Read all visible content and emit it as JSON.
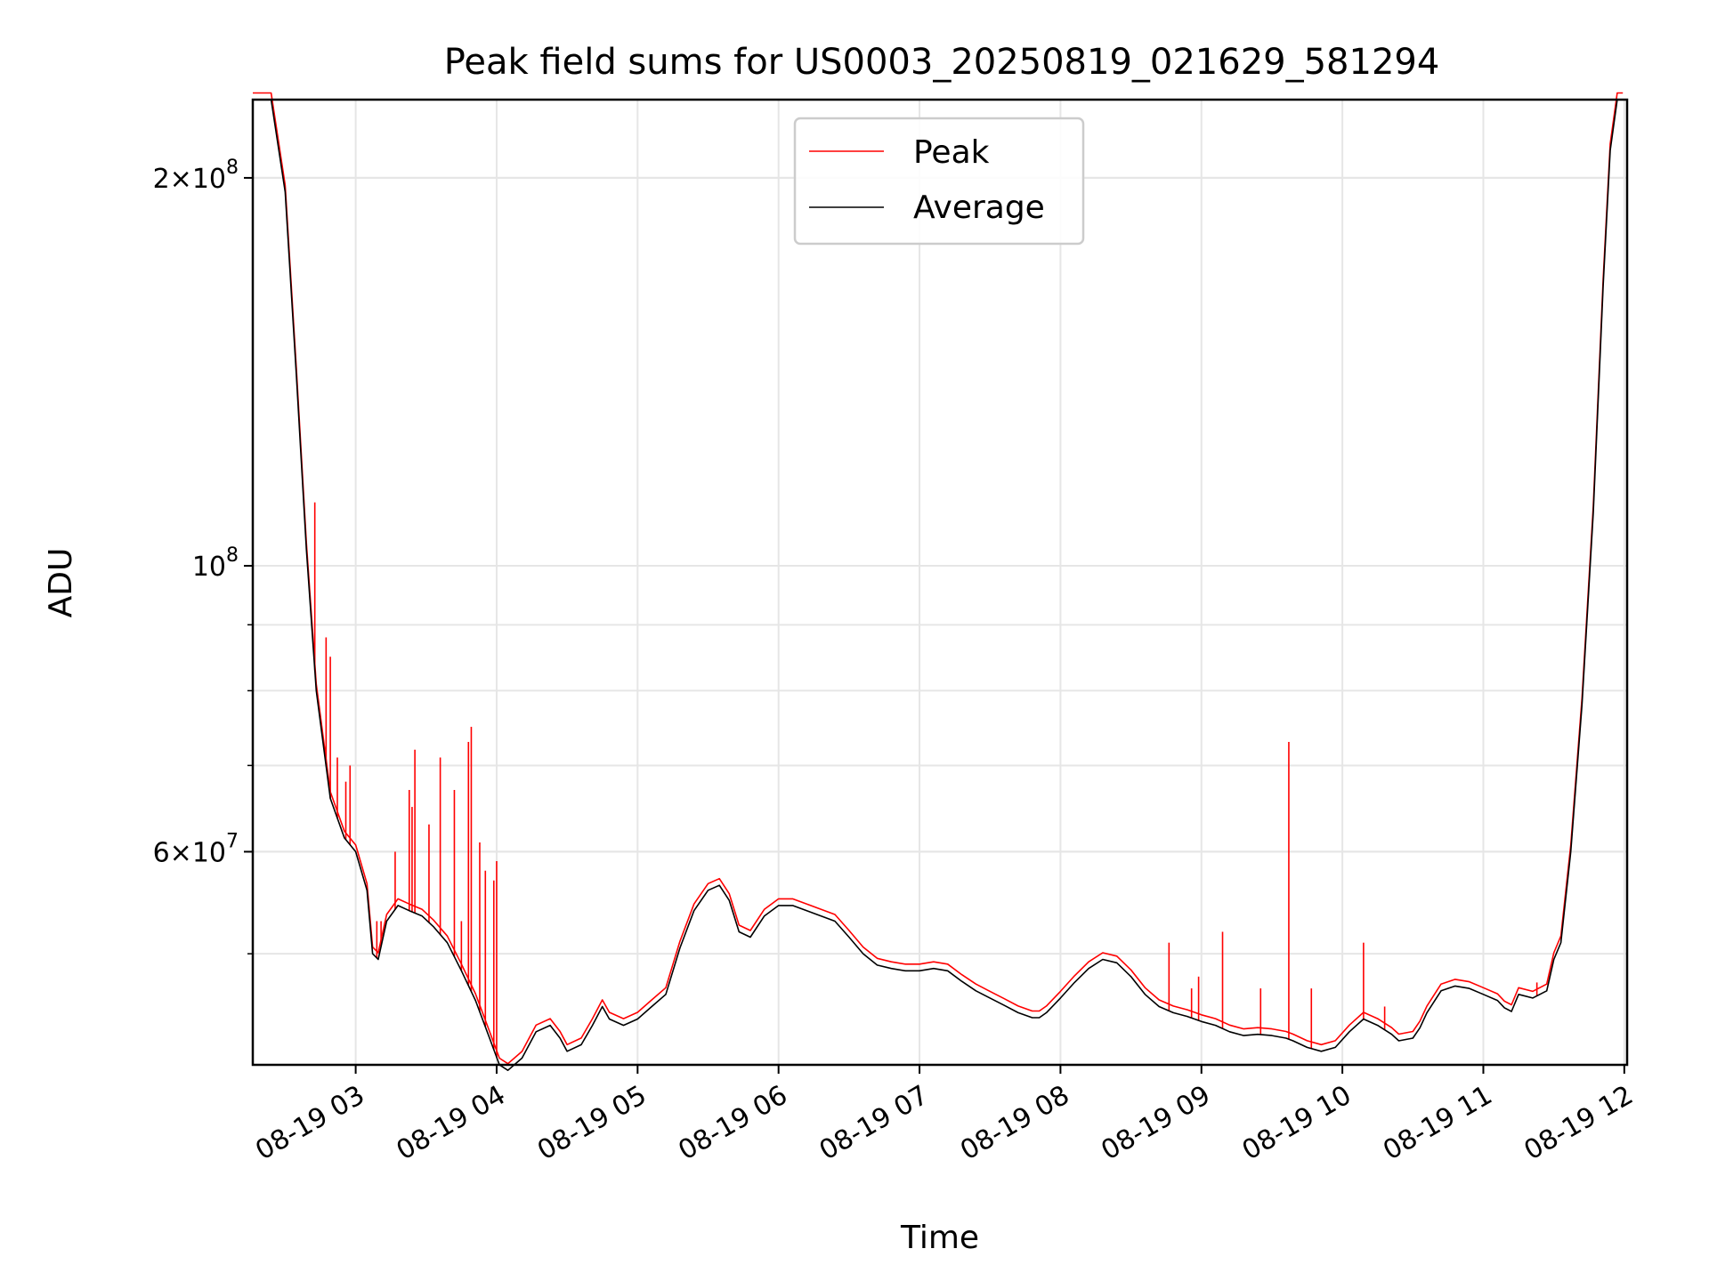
{
  "chart_data": {
    "type": "line",
    "title": "Peak field sums for US0003_20250819_021629_581294",
    "xlabel": "Time",
    "ylabel": "ADU",
    "yscale": "log",
    "xlim": [
      "08-19 02:16",
      "08-19 12:01"
    ],
    "ylim": [
      41000000,
      230000000
    ],
    "grid": true,
    "legend_position": "upper center",
    "x_ticks": [
      "08-19 03",
      "08-19 04",
      "08-19 05",
      "08-19 06",
      "08-19 07",
      "08-19 08",
      "08-19 09",
      "08-19 10",
      "08-19 11",
      "08-19 12"
    ],
    "y_major_ticks": [
      {
        "value": 200000000,
        "mantissa": "2",
        "exponent": "8"
      },
      {
        "value": 100000000,
        "mantissa": "",
        "exponent": "8"
      },
      {
        "value": 60000000,
        "mantissa": "6",
        "exponent": "7"
      }
    ],
    "y_minor_ticks": [
      200000000,
      90000000,
      80000000,
      70000000,
      60000000,
      50000000
    ],
    "x_unit": "hour of day 08-19",
    "series": [
      {
        "name": "Average",
        "color": "#000000",
        "x": [
          2.27,
          2.4,
          2.5,
          2.58,
          2.65,
          2.72,
          2.82,
          2.92,
          3.0,
          3.08,
          3.12,
          3.16,
          3.22,
          3.3,
          3.38,
          3.47,
          3.55,
          3.65,
          3.75,
          3.85,
          3.95,
          4.02,
          4.08,
          4.18,
          4.28,
          4.38,
          4.45,
          4.5,
          4.6,
          4.68,
          4.75,
          4.8,
          4.9,
          5.0,
          5.1,
          5.2,
          5.3,
          5.4,
          5.5,
          5.58,
          5.65,
          5.72,
          5.8,
          5.9,
          6.0,
          6.1,
          6.2,
          6.3,
          6.4,
          6.5,
          6.6,
          6.7,
          6.8,
          6.9,
          7.0,
          7.1,
          7.2,
          7.3,
          7.4,
          7.5,
          7.6,
          7.7,
          7.8,
          7.85,
          7.9,
          8.0,
          8.1,
          8.2,
          8.3,
          8.4,
          8.5,
          8.6,
          8.7,
          8.8,
          8.9,
          9.0,
          9.1,
          9.2,
          9.3,
          9.4,
          9.5,
          9.6,
          9.65,
          9.75,
          9.85,
          9.95,
          10.05,
          10.15,
          10.25,
          10.35,
          10.4,
          10.5,
          10.55,
          10.6,
          10.7,
          10.8,
          10.9,
          11.0,
          11.1,
          11.15,
          11.2,
          11.25,
          11.35,
          11.45,
          11.5,
          11.55,
          11.62,
          11.7,
          11.78,
          11.85,
          11.9,
          11.95,
          11.99
        ],
        "y": [
          230000000,
          230000000,
          195000000,
          140000000,
          103000000,
          80000000,
          66000000,
          61500000,
          60000000,
          56000000,
          50000000,
          49500000,
          53000000,
          54500000,
          54000000,
          53500000,
          52500000,
          51000000,
          48500000,
          46000000,
          43000000,
          41000000,
          40600000,
          41500000,
          43500000,
          44000000,
          43000000,
          42000000,
          42500000,
          44000000,
          45500000,
          44500000,
          44000000,
          44500000,
          45500000,
          46500000,
          50500000,
          54000000,
          56000000,
          56500000,
          55000000,
          52000000,
          51500000,
          53500000,
          54500000,
          54500000,
          54000000,
          53500000,
          53000000,
          51500000,
          50000000,
          49000000,
          48700000,
          48500000,
          48500000,
          48700000,
          48500000,
          47600000,
          46800000,
          46200000,
          45600000,
          45000000,
          44600000,
          44600000,
          45000000,
          46200000,
          47500000,
          48700000,
          49500000,
          49200000,
          48000000,
          46500000,
          45500000,
          45000000,
          44700000,
          44300000,
          44000000,
          43500000,
          43200000,
          43300000,
          43200000,
          43000000,
          42800000,
          42300000,
          42000000,
          42300000,
          43500000,
          44500000,
          44000000,
          43300000,
          42800000,
          43000000,
          43800000,
          45000000,
          46800000,
          47200000,
          47000000,
          46500000,
          46000000,
          45400000,
          45100000,
          46500000,
          46200000,
          46800000,
          49500000,
          51000000,
          60000000,
          78000000,
          110000000,
          165000000,
          210000000,
          230000000,
          230000000
        ]
      },
      {
        "name": "Peak",
        "color": "#ff0000",
        "spikes": [
          {
            "x": 2.71,
            "y": 112000000
          },
          {
            "x": 2.79,
            "y": 88000000
          },
          {
            "x": 2.82,
            "y": 85000000
          },
          {
            "x": 2.87,
            "y": 71000000
          },
          {
            "x": 2.93,
            "y": 68000000
          },
          {
            "x": 2.96,
            "y": 70000000
          },
          {
            "x": 3.15,
            "y": 53000000
          },
          {
            "x": 3.18,
            "y": 53000000
          },
          {
            "x": 3.28,
            "y": 60000000
          },
          {
            "x": 3.38,
            "y": 67000000
          },
          {
            "x": 3.4,
            "y": 65000000
          },
          {
            "x": 3.42,
            "y": 72000000
          },
          {
            "x": 3.52,
            "y": 63000000
          },
          {
            "x": 3.6,
            "y": 71000000
          },
          {
            "x": 3.7,
            "y": 67000000
          },
          {
            "x": 3.75,
            "y": 53000000
          },
          {
            "x": 3.8,
            "y": 73000000
          },
          {
            "x": 3.82,
            "y": 75000000
          },
          {
            "x": 3.88,
            "y": 61000000
          },
          {
            "x": 3.92,
            "y": 58000000
          },
          {
            "x": 3.98,
            "y": 57000000
          },
          {
            "x": 4.0,
            "y": 59000000
          },
          {
            "x": 8.77,
            "y": 51000000
          },
          {
            "x": 8.93,
            "y": 47000000
          },
          {
            "x": 8.98,
            "y": 48000000
          },
          {
            "x": 9.15,
            "y": 52000000
          },
          {
            "x": 9.42,
            "y": 47000000
          },
          {
            "x": 9.62,
            "y": 73000000
          },
          {
            "x": 9.78,
            "y": 47000000
          },
          {
            "x": 10.15,
            "y": 51000000
          },
          {
            "x": 10.3,
            "y": 45500000
          },
          {
            "x": 11.38,
            "y": 47500000
          }
        ]
      }
    ]
  }
}
